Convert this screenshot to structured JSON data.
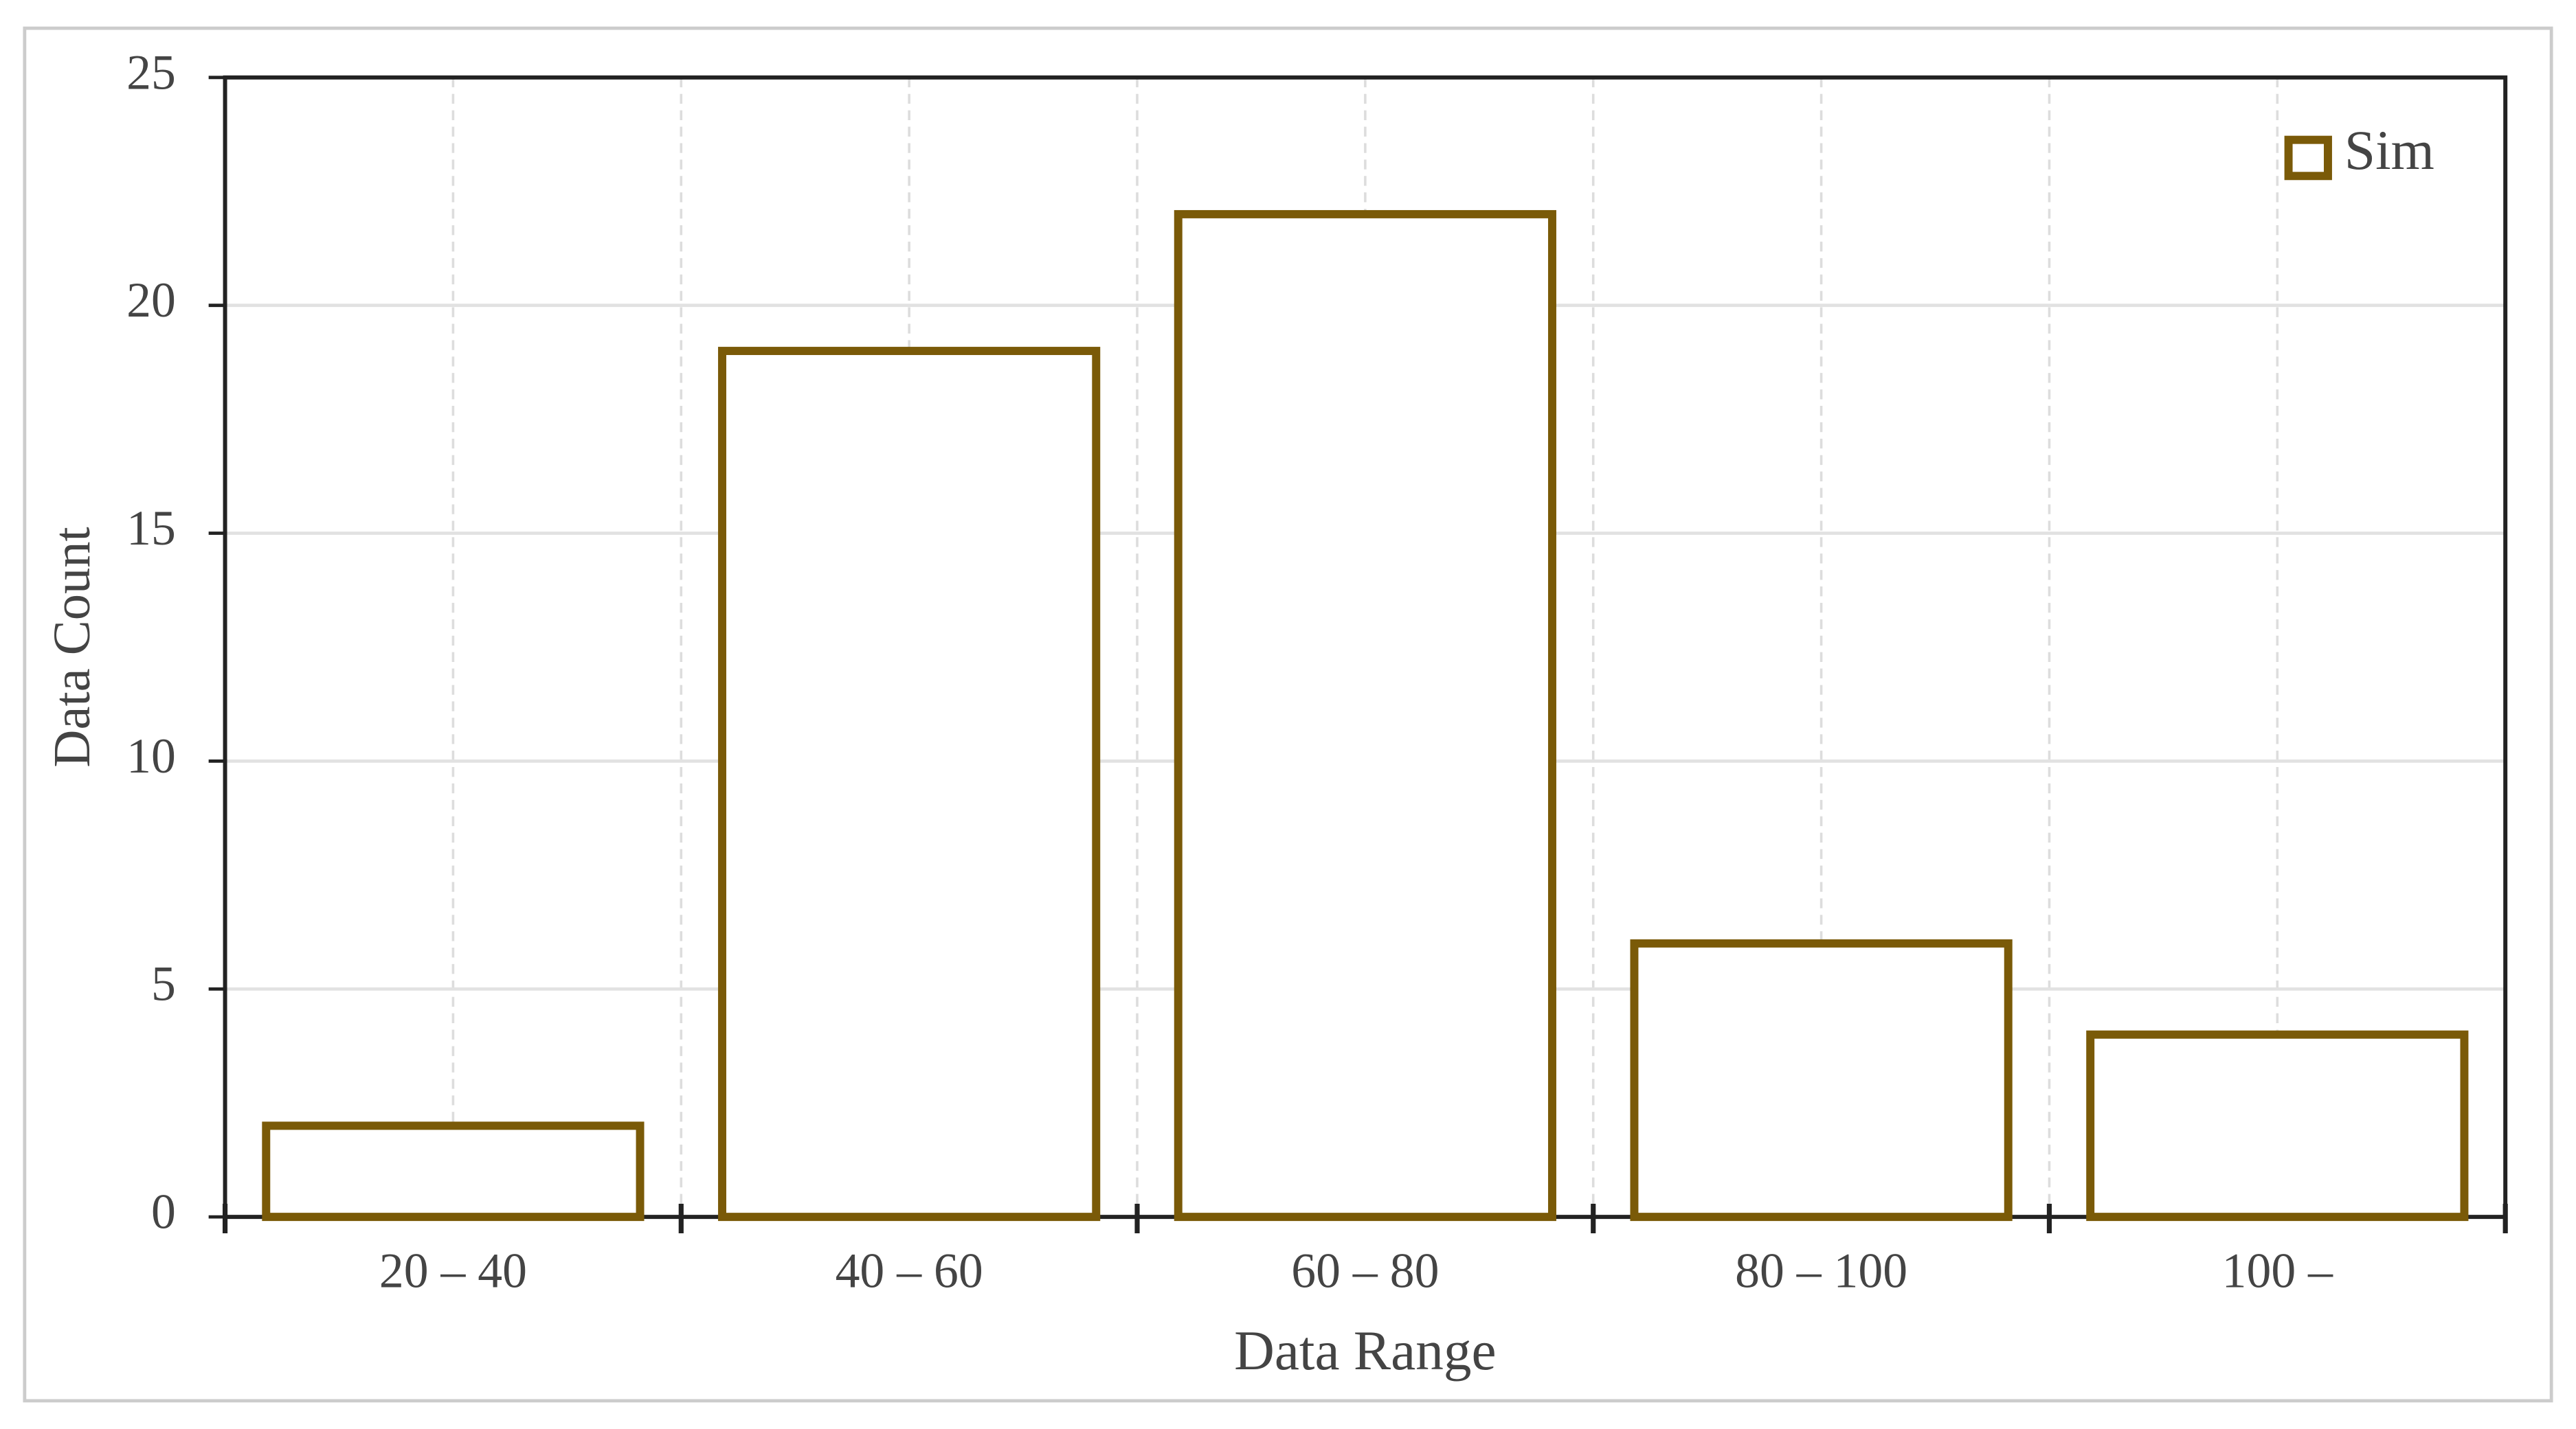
{
  "chart_data": {
    "type": "bar",
    "x_label": "Data Range",
    "y_label": "Data Count",
    "categories": [
      "20 – 40",
      "40 – 60",
      "60 – 80",
      "80 – 100",
      "100 –"
    ],
    "series": [
      {
        "name": "Sim",
        "color": "#7a5a08",
        "values": [
          2,
          19,
          22,
          6,
          4
        ]
      }
    ],
    "ylim": [
      0,
      25
    ],
    "yticks": [
      0,
      5,
      10,
      15,
      20,
      25
    ],
    "grid": true,
    "legend": "upper right"
  }
}
